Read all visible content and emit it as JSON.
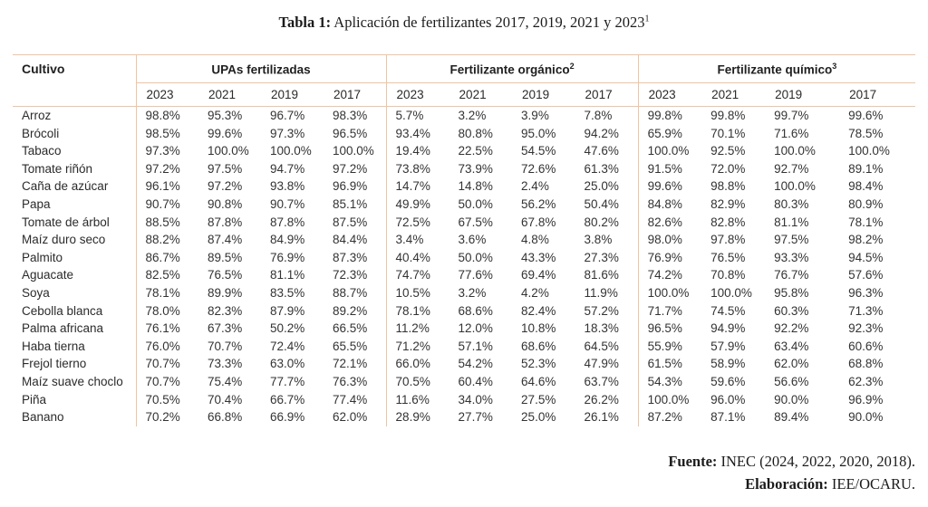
{
  "title": {
    "prefix": "Tabla 1:",
    "text": " Aplicación de fertilizantes 2017, 2019, 2021 y 2023",
    "sup": "1"
  },
  "colors": {
    "line": "#f2c39e",
    "text": "#2e2e2e"
  },
  "table": {
    "crop_header": "Cultivo",
    "groups": [
      {
        "label": "UPAs fertilizadas",
        "sup": "",
        "years": [
          "2023",
          "2021",
          "2019",
          "2017"
        ]
      },
      {
        "label": "Fertilizante orgánico",
        "sup": "2",
        "years": [
          "2023",
          "2021",
          "2019",
          "2017"
        ]
      },
      {
        "label": "Fertilizante químico",
        "sup": "3",
        "years": [
          "2023",
          "2021",
          "2019",
          "2017"
        ]
      }
    ],
    "rows": [
      {
        "name": "Arroz",
        "values": [
          "98.8%",
          "95.3%",
          "96.7%",
          "98.3%",
          "5.7%",
          "3.2%",
          "3.9%",
          "7.8%",
          "99.8%",
          "99.8%",
          "99.7%",
          "99.6%"
        ]
      },
      {
        "name": "Brócoli",
        "values": [
          "98.5%",
          "99.6%",
          "97.3%",
          "96.5%",
          "93.4%",
          "80.8%",
          "95.0%",
          "94.2%",
          "65.9%",
          "70.1%",
          "71.6%",
          "78.5%"
        ]
      },
      {
        "name": "Tabaco",
        "values": [
          "97.3%",
          "100.0%",
          "100.0%",
          "100.0%",
          "19.4%",
          "22.5%",
          "54.5%",
          "47.6%",
          "100.0%",
          "92.5%",
          "100.0%",
          "100.0%"
        ]
      },
      {
        "name": "Tomate riñón",
        "values": [
          "97.2%",
          "97.5%",
          "94.7%",
          "97.2%",
          "73.8%",
          "73.9%",
          "72.6%",
          "61.3%",
          "91.5%",
          "72.0%",
          "92.7%",
          "89.1%"
        ]
      },
      {
        "name": "Caña de azúcar",
        "values": [
          "96.1%",
          "97.2%",
          "93.8%",
          "96.9%",
          "14.7%",
          "14.8%",
          "2.4%",
          "25.0%",
          "99.6%",
          "98.8%",
          "100.0%",
          "98.4%"
        ]
      },
      {
        "name": "Papa",
        "values": [
          "90.7%",
          "90.8%",
          "90.7%",
          "85.1%",
          "49.9%",
          "50.0%",
          "56.2%",
          "50.4%",
          "84.8%",
          "82.9%",
          "80.3%",
          "80.9%"
        ]
      },
      {
        "name": "Tomate de árbol",
        "values": [
          "88.5%",
          "87.8%",
          "87.8%",
          "87.5%",
          "72.5%",
          "67.5%",
          "67.8%",
          "80.2%",
          "82.6%",
          "82.8%",
          "81.1%",
          "78.1%"
        ]
      },
      {
        "name": "Maíz duro seco",
        "values": [
          "88.2%",
          "87.4%",
          "84.9%",
          "84.4%",
          "3.4%",
          "3.6%",
          "4.8%",
          "3.8%",
          "98.0%",
          "97.8%",
          "97.5%",
          "98.2%"
        ]
      },
      {
        "name": "Palmito",
        "values": [
          "86.7%",
          "89.5%",
          "76.9%",
          "87.3%",
          "40.4%",
          "50.0%",
          "43.3%",
          "27.3%",
          "76.9%",
          "76.5%",
          "93.3%",
          "94.5%"
        ]
      },
      {
        "name": "Aguacate",
        "values": [
          "82.5%",
          "76.5%",
          "81.1%",
          "72.3%",
          "74.7%",
          "77.6%",
          "69.4%",
          "81.6%",
          "74.2%",
          "70.8%",
          "76.7%",
          "57.6%"
        ]
      },
      {
        "name": "Soya",
        "values": [
          "78.1%",
          "89.9%",
          "83.5%",
          "88.7%",
          "10.5%",
          "3.2%",
          "4.2%",
          "11.9%",
          "100.0%",
          "100.0%",
          "95.8%",
          "96.3%"
        ]
      },
      {
        "name": "Cebolla blanca",
        "values": [
          "78.0%",
          "82.3%",
          "87.9%",
          "89.2%",
          "78.1%",
          "68.6%",
          "82.4%",
          "57.2%",
          "71.7%",
          "74.5%",
          "60.3%",
          "71.3%"
        ]
      },
      {
        "name": "Palma africana",
        "values": [
          "76.1%",
          "67.3%",
          "50.2%",
          "66.5%",
          "11.2%",
          "12.0%",
          "10.8%",
          "18.3%",
          "96.5%",
          "94.9%",
          "92.2%",
          "92.3%"
        ]
      },
      {
        "name": "Haba tierna",
        "values": [
          "76.0%",
          "70.7%",
          "72.4%",
          "65.5%",
          "71.2%",
          "57.1%",
          "68.6%",
          "64.5%",
          "55.9%",
          "57.9%",
          "63.4%",
          "60.6%"
        ]
      },
      {
        "name": "Frejol tierno",
        "values": [
          "70.7%",
          "73.3%",
          "63.0%",
          "72.1%",
          "66.0%",
          "54.2%",
          "52.3%",
          "47.9%",
          "61.5%",
          "58.9%",
          "62.0%",
          "68.8%"
        ]
      },
      {
        "name": "Maíz suave choclo",
        "values": [
          "70.7%",
          "75.4%",
          "77.7%",
          "76.3%",
          "70.5%",
          "60.4%",
          "64.6%",
          "63.7%",
          "54.3%",
          "59.6%",
          "56.6%",
          "62.3%"
        ]
      },
      {
        "name": "Piña",
        "values": [
          "70.5%",
          "70.4%",
          "66.7%",
          "77.4%",
          "11.6%",
          "34.0%",
          "27.5%",
          "26.2%",
          "100.0%",
          "96.0%",
          "90.0%",
          "96.9%"
        ]
      },
      {
        "name": "Banano",
        "values": [
          "70.2%",
          "66.8%",
          "66.9%",
          "62.0%",
          "28.9%",
          "27.7%",
          "25.0%",
          "26.1%",
          "87.2%",
          "87.1%",
          "89.4%",
          "90.0%"
        ]
      }
    ]
  },
  "footer": {
    "source_label": "Fuente:",
    "source_text": " INEC (2024, 2022, 2020, 2018).",
    "elaboration_label": "Elaboración:",
    "elaboration_text": " IEE/OCARU."
  }
}
